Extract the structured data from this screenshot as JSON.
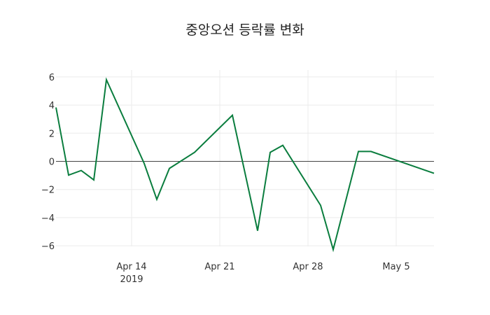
{
  "chart_data": {
    "type": "line",
    "title": "중앙오션 등락률 변화",
    "xlabel": "",
    "ylabel": "",
    "x": [
      "2019-04-08",
      "2019-04-09",
      "2019-04-10",
      "2019-04-11",
      "2019-04-12",
      "2019-04-15",
      "2019-04-16",
      "2019-04-17",
      "2019-04-19",
      "2019-04-22",
      "2019-04-24",
      "2019-04-25",
      "2019-04-26",
      "2019-04-29",
      "2019-04-30",
      "2019-05-02",
      "2019-05-03",
      "2019-05-08"
    ],
    "series": [
      {
        "name": "등락률",
        "color": "#0a7d3e",
        "values": [
          3.83,
          -0.98,
          -0.65,
          -1.32,
          5.8,
          -0.15,
          -2.7,
          -0.5,
          0.64,
          3.28,
          -4.93,
          0.64,
          1.14,
          -3.13,
          -6.27,
          0.7,
          0.7,
          -0.85
        ]
      }
    ],
    "ylim": [
      -6.5,
      6.4
    ],
    "yticks": [
      6,
      4,
      2,
      0,
      -2,
      -4,
      -6
    ],
    "ytick_labels": [
      "6",
      "4",
      "2",
      "0",
      "−2",
      "−4",
      "−6"
    ],
    "xticks": [
      {
        "date": "2019-04-14",
        "label": "Apr 14",
        "sublabel": "2019"
      },
      {
        "date": "2019-04-21",
        "label": "Apr 21",
        "sublabel": ""
      },
      {
        "date": "2019-04-28",
        "label": "Apr 28",
        "sublabel": ""
      },
      {
        "date": "2019-05-05",
        "label": "May 5",
        "sublabel": ""
      }
    ],
    "grid": true,
    "zero_line": true,
    "legend": "none"
  }
}
